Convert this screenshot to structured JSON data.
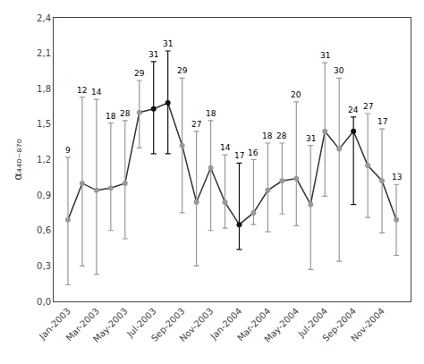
{
  "chart_data": {
    "type": "line",
    "ylabel": "α₄₄₀₋₈₇₀",
    "categories": [
      "Jan-2003",
      null,
      "Mar-2003",
      null,
      "May-2003",
      null,
      "Jul-2003",
      null,
      "Sep-2003",
      null,
      "Nov-2003",
      null,
      "Jan-2004",
      null,
      "Mar-2004",
      null,
      "May-2004",
      null,
      "Jul-2004",
      null,
      "Sep-2004",
      null,
      "Nov-2004",
      null
    ],
    "series": [
      {
        "color": "#333333",
        "colors": [
          "#999999",
          "#999999",
          "#999999",
          "#999999",
          "#999999",
          "#999999",
          "#111111",
          "#111111",
          "#999999",
          "#999999",
          "#999999",
          "#999999",
          "#111111",
          "#999999",
          "#999999",
          "#999999",
          "#999999",
          "#999999",
          "#999999",
          "#999999",
          "#111111",
          "#999999",
          "#999999",
          "#999999"
        ],
        "values": [
          0.69,
          1.0,
          0.94,
          0.96,
          1.0,
          1.6,
          1.63,
          1.68,
          1.32,
          0.84,
          1.13,
          0.84,
          0.65,
          0.75,
          0.94,
          1.02,
          1.04,
          0.82,
          1.44,
          1.29,
          1.44,
          1.15,
          1.02,
          0.69
        ],
        "error_upper": [
          0.53,
          0.73,
          0.77,
          0.55,
          0.53,
          0.27,
          0.4,
          0.44,
          0.57,
          0.6,
          0.4,
          0.4,
          0.52,
          0.45,
          0.4,
          0.32,
          0.65,
          0.5,
          0.58,
          0.6,
          0.12,
          0.44,
          0.44,
          0.3
        ],
        "error_lower": [
          0.55,
          0.7,
          0.71,
          0.36,
          0.47,
          0.3,
          0.38,
          0.43,
          0.57,
          0.54,
          0.53,
          0.22,
          0.21,
          0.1,
          0.35,
          0.28,
          0.4,
          0.55,
          0.55,
          0.95,
          0.62,
          0.44,
          0.44,
          0.3
        ],
        "n_labels": [
          9,
          12,
          14,
          18,
          28,
          29,
          31,
          31,
          29,
          27,
          18,
          14,
          17,
          16,
          18,
          28,
          20,
          31,
          31,
          30,
          24,
          27,
          17,
          13
        ]
      }
    ],
    "marker": "circle",
    "ylim": [
      0.0,
      2.4
    ],
    "yticks": [
      {
        "value": 0.0,
        "label": "0,0"
      },
      {
        "value": 0.3,
        "label": "0,3"
      },
      {
        "value": 0.6,
        "label": "0,6"
      },
      {
        "value": 0.9,
        "label": "0,9"
      },
      {
        "value": 1.2,
        "label": "1,2"
      },
      {
        "value": 1.5,
        "label": "1,5"
      },
      {
        "value": 1.8,
        "label": "1,8"
      },
      {
        "value": 2.1,
        "label": "2,1"
      },
      {
        "value": 2.4,
        "label": "2,4"
      }
    ],
    "grid": false
  }
}
